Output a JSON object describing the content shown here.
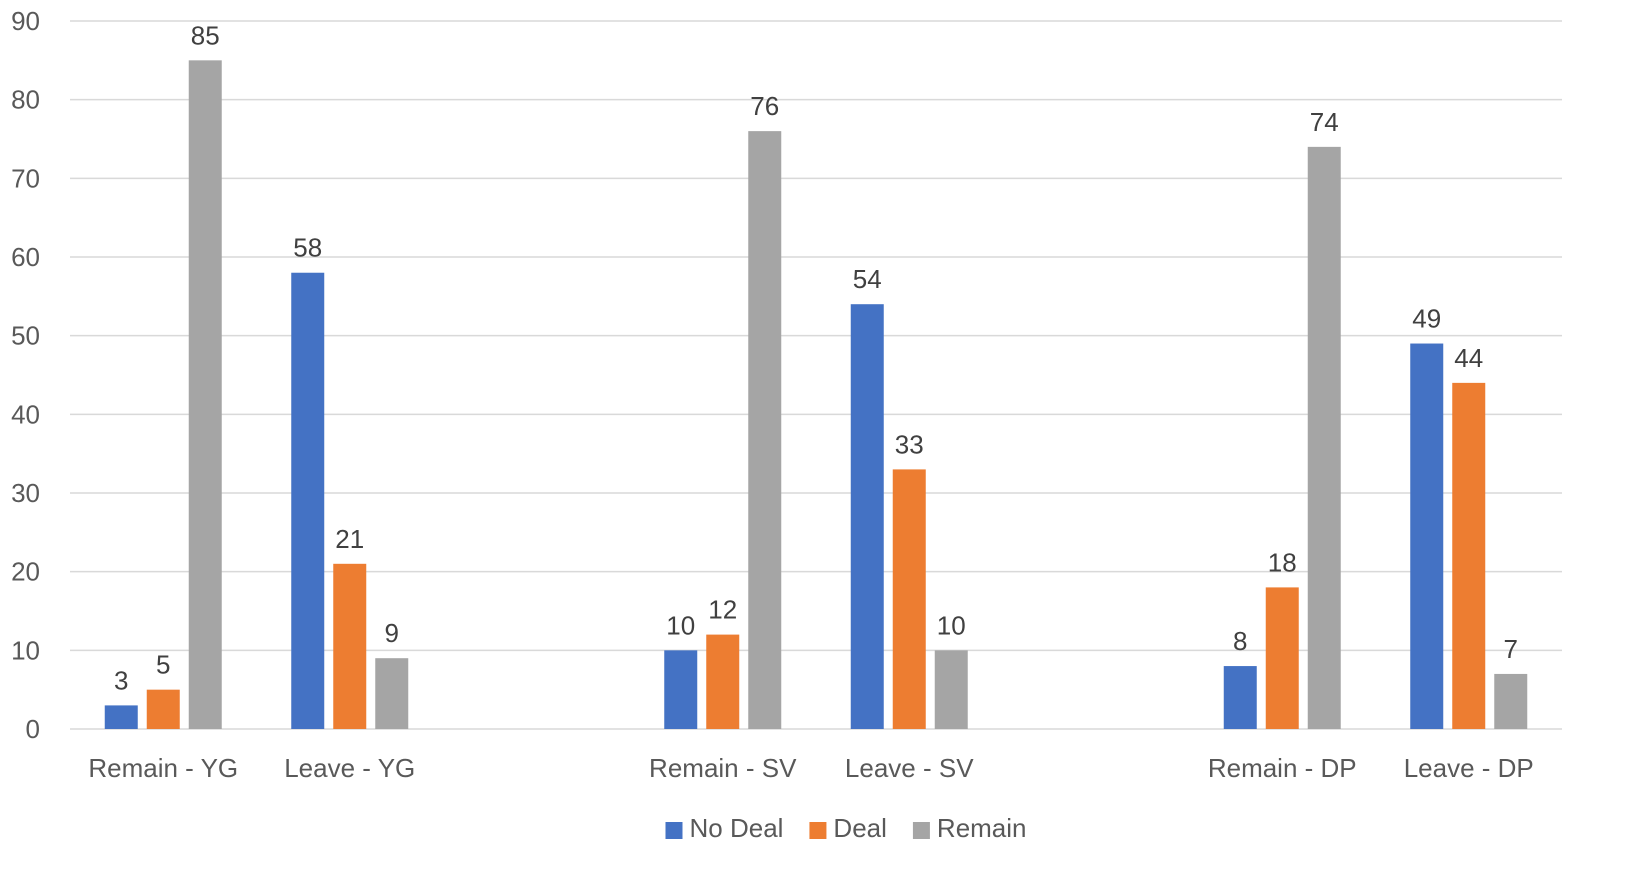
{
  "chart_data": {
    "type": "bar",
    "title": "",
    "xlabel": "",
    "ylabel": "",
    "ylim": [
      0,
      90
    ],
    "yticks": [
      0,
      10,
      20,
      30,
      40,
      50,
      60,
      70,
      80,
      90
    ],
    "grid": true,
    "legend_position": "bottom",
    "categories": [
      "Remain - YG",
      "Leave - YG",
      "",
      "Remain - SV",
      "Leave - SV",
      "",
      "Remain - DP",
      "Leave - DP"
    ],
    "series": [
      {
        "name": "No Deal",
        "color": "#4472C4",
        "values": [
          3,
          58,
          null,
          10,
          54,
          null,
          8,
          49
        ]
      },
      {
        "name": "Deal",
        "color": "#ED7D31",
        "values": [
          5,
          21,
          null,
          12,
          33,
          null,
          18,
          44
        ]
      },
      {
        "name": "Remain",
        "color": "#A5A5A5",
        "values": [
          85,
          9,
          null,
          76,
          10,
          null,
          74,
          7
        ]
      }
    ]
  }
}
